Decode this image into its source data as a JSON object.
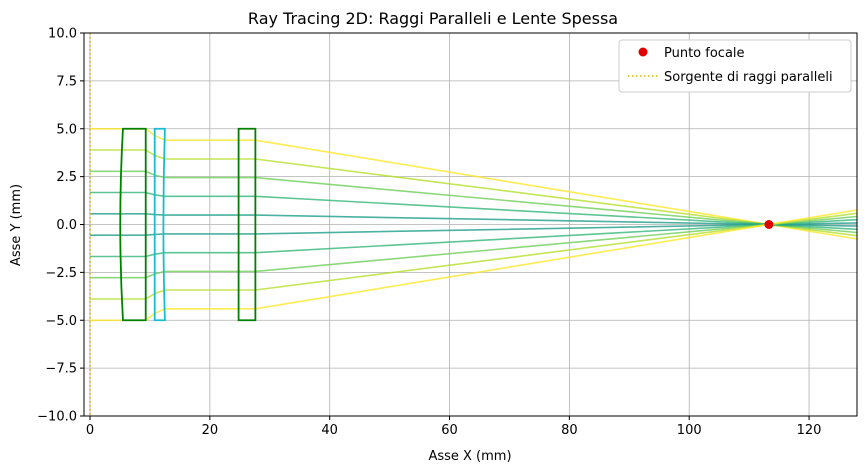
{
  "chart_data": {
    "type": "line",
    "title": "Ray Tracing 2D: Raggi Paralleli e Lente Spessa",
    "xlabel": "Asse X (mm)",
    "ylabel": "Asse Y (mm)",
    "xlim": [
      -1,
      128
    ],
    "ylim": [
      -10,
      10
    ],
    "xticks": [
      0,
      20,
      40,
      60,
      80,
      100,
      120
    ],
    "yticks": [
      -10.0,
      -7.5,
      -5.0,
      -2.5,
      0.0,
      2.5,
      5.0,
      7.5,
      10.0
    ],
    "xtick_labels": [
      "0",
      "20",
      "40",
      "60",
      "80",
      "100",
      "120"
    ],
    "ytick_labels": [
      "−10.0",
      "−7.5",
      "−5.0",
      "−2.5",
      "0.0",
      "2.5",
      "5.0",
      "7.5",
      "10.0"
    ],
    "grid": true,
    "legend_position": "top-right",
    "legend": [
      {
        "label": "Punto focale",
        "marker": "dot",
        "color": "#e00000"
      },
      {
        "label": "Sorgente di raggi paralleli",
        "marker": "dotted-line",
        "color": "#d4b800"
      }
    ],
    "source_x": 0,
    "focal_point": {
      "x": 113.3,
      "y": 0
    },
    "ray_heights": [
      5.0,
      3.89,
      2.78,
      1.67,
      0.56,
      -0.56,
      -1.67,
      -2.78,
      -3.89,
      -5.0
    ],
    "ray_colors": [
      "#fde725",
      "#b5de2b",
      "#6ece58",
      "#35b779",
      "#1f9e89",
      "#1f9e89",
      "#35b779",
      "#6ece58",
      "#b5de2b",
      "#fde725"
    ],
    "lens_color_green": "#008000",
    "lens_color_cyan": "#17becf",
    "lenses": [
      {
        "name": "L1",
        "x_left": 5.5,
        "x_right": 9.3,
        "y_half": 5.0,
        "color": "green",
        "curve_left": -0.9,
        "curve_right": 0
      },
      {
        "name": "L2",
        "x_left": 10.8,
        "x_right": 12.5,
        "y_half": 5.0,
        "color": "cyan",
        "curve_left": 0,
        "curve_right": -0.5
      },
      {
        "name": "L3",
        "x_left": 24.8,
        "x_right": 27.6,
        "y_half": 5.0,
        "color": "green",
        "curve_left": 0,
        "curve_right": 0
      }
    ],
    "ray_segments_y_after_l2": [
      4.4,
      3.42,
      2.45,
      1.47,
      0.49,
      -0.49,
      -1.47,
      -2.45,
      -3.42,
      -4.4
    ]
  }
}
